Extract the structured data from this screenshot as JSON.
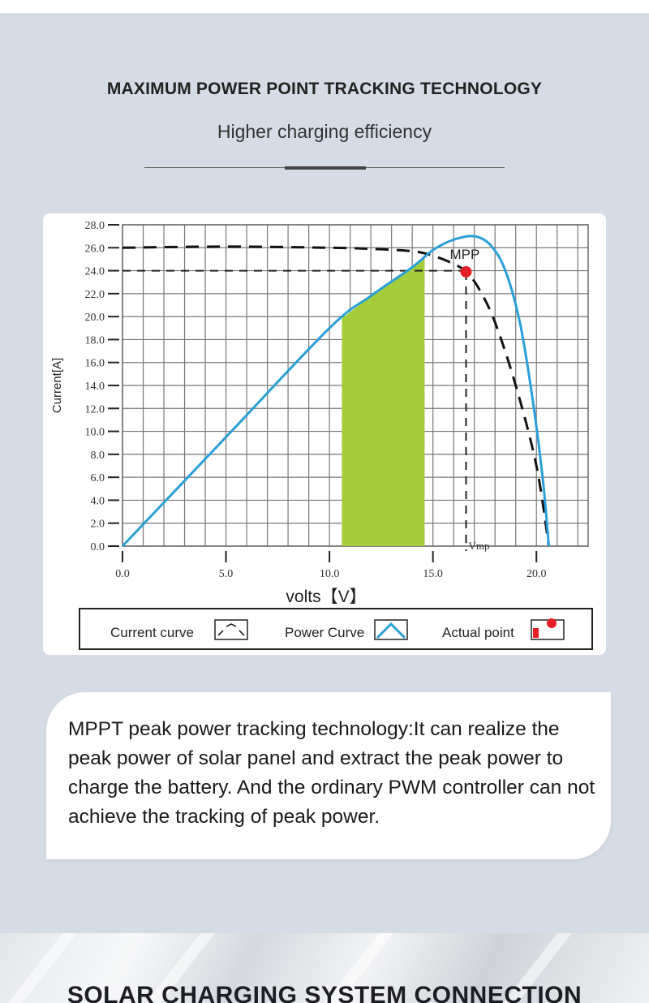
{
  "header": {
    "title": "MAXIMUM POWER POINT TRACKING TECHNOLOGY",
    "subtitle": "Higher charging efficiency"
  },
  "chart_data": {
    "type": "line",
    "xlabel": "volts【V】",
    "ylabel": "Current[A]",
    "xlim": [
      0,
      22.5
    ],
    "ylim": [
      0,
      28
    ],
    "x_ticks": [
      "0.0",
      "5.0",
      "10.0",
      "15.0",
      "20.0"
    ],
    "x_tick_values": [
      0,
      5,
      10,
      15,
      20
    ],
    "y_ticks": [
      "0.0",
      "2.0",
      "4.0",
      "6.0",
      "8.0",
      "10.0",
      "12.0",
      "14.0",
      "16.0",
      "18.0",
      "20.0",
      "22.0",
      "24.0",
      "26.0",
      "28.0"
    ],
    "y_tick_values": [
      0,
      2,
      4,
      6,
      8,
      10,
      12,
      14,
      16,
      18,
      20,
      22,
      24,
      26,
      28
    ],
    "grid": true,
    "series": [
      {
        "name": "Current curve",
        "style": "dashed",
        "color": "#111111",
        "x": [
          0,
          5,
          10,
          12,
          14,
          15,
          16,
          16.6,
          17.2,
          18,
          19,
          20,
          20.6
        ],
        "y": [
          26,
          26.1,
          26,
          25.9,
          25.7,
          25.3,
          24.6,
          23.9,
          22.5,
          19.5,
          14,
          7,
          0
        ]
      },
      {
        "name": "Power Curve",
        "style": "solid",
        "color": "#2a9fd8",
        "x": [
          0,
          5,
          10,
          12,
          14,
          15,
          16,
          17,
          17.8,
          18.5,
          19.2,
          19.8,
          20.3,
          20.6
        ],
        "y": [
          0,
          9.5,
          19,
          21.8,
          24.3,
          25.8,
          26.7,
          27,
          26.2,
          24,
          19.5,
          13,
          6,
          0
        ]
      }
    ],
    "shaded_region": {
      "color": "#a5cc3a",
      "x_from": 10.6,
      "x_to": 14.6
    },
    "mpp": {
      "label": "MPP",
      "x": 16.6,
      "y": 23.9,
      "color": "#e41e25"
    },
    "reference_lines": {
      "current_level": 24,
      "voltage_label": "Vmp"
    },
    "legend": {
      "position": "bottom",
      "items": [
        {
          "label": "Current curve",
          "icon": "current-curve-icon"
        },
        {
          "label": "Power Curve",
          "icon": "power-curve-icon"
        },
        {
          "label": "Actual point",
          "icon": "actual-point-icon"
        }
      ]
    }
  },
  "description": {
    "text": "MPPT peak power tracking technology:It can realize the peak power of solar panel and extract the peak power to charge the battery. And the ordinary PWM controller can not achieve the tracking of peak power."
  },
  "footer": {
    "title": "SOLAR CHARGING SYSTEM CONNECTION"
  },
  "colors": {
    "background": "#d5dce6",
    "power_curve": "#2a9fd8",
    "shaded_area": "#a5cc3a",
    "mpp_point": "#e41e25"
  }
}
